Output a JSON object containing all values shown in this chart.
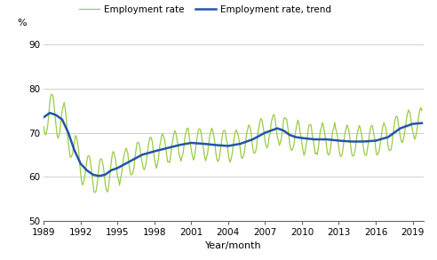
{
  "title": "",
  "ylabel": "%",
  "xlabel": "Year/month",
  "legend_employment": "Employment rate",
  "legend_trend": "Employment rate, trend",
  "ylim": [
    50,
    93
  ],
  "yticks": [
    50,
    60,
    70,
    80,
    90
  ],
  "xticks": [
    1989,
    1992,
    1995,
    1998,
    2001,
    2004,
    2007,
    2010,
    2013,
    2016,
    2019
  ],
  "color_employment": "#99cc44",
  "color_trend": "#2255aa",
  "bg_color": "#ffffff",
  "grid_color": "#bbbbbb",
  "linewidth_employment": 0.9,
  "linewidth_trend": 1.8,
  "anchors": [
    [
      1989.0,
      73.5
    ],
    [
      1989.5,
      74.5
    ],
    [
      1990.0,
      74.0
    ],
    [
      1990.5,
      73.0
    ],
    [
      1991.0,
      70.0
    ],
    [
      1991.5,
      66.0
    ],
    [
      1992.0,
      63.0
    ],
    [
      1992.5,
      61.5
    ],
    [
      1993.0,
      60.5
    ],
    [
      1993.5,
      60.2
    ],
    [
      1994.0,
      60.5
    ],
    [
      1994.5,
      61.5
    ],
    [
      1995.0,
      62.0
    ],
    [
      1996.0,
      63.5
    ],
    [
      1997.0,
      65.0
    ],
    [
      1998.0,
      65.8
    ],
    [
      1999.0,
      66.5
    ],
    [
      2000.0,
      67.2
    ],
    [
      2001.0,
      67.7
    ],
    [
      2002.0,
      67.5
    ],
    [
      2003.0,
      67.2
    ],
    [
      2004.0,
      67.0
    ],
    [
      2005.0,
      67.5
    ],
    [
      2006.0,
      68.5
    ],
    [
      2007.0,
      70.0
    ],
    [
      2008.0,
      71.0
    ],
    [
      2008.5,
      70.5
    ],
    [
      2009.0,
      69.5
    ],
    [
      2009.5,
      69.0
    ],
    [
      2010.0,
      68.8
    ],
    [
      2011.0,
      68.5
    ],
    [
      2012.0,
      68.5
    ],
    [
      2013.0,
      68.2
    ],
    [
      2014.0,
      68.0
    ],
    [
      2015.0,
      68.0
    ],
    [
      2016.0,
      68.2
    ],
    [
      2017.0,
      69.0
    ],
    [
      2018.0,
      71.0
    ],
    [
      2019.0,
      72.0
    ],
    [
      2019.833,
      72.2
    ]
  ]
}
